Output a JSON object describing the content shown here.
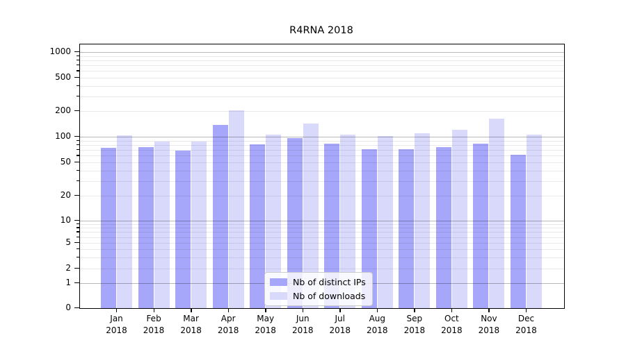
{
  "chart_data": {
    "type": "bar",
    "title": "R4RNA 2018",
    "categories": [
      "Jan",
      "Feb",
      "Mar",
      "Apr",
      "May",
      "Jun",
      "Jul",
      "Aug",
      "Sep",
      "Oct",
      "Nov",
      "Dec"
    ],
    "year_label": "2018",
    "series": [
      {
        "name": "Nb of distinct IPs",
        "color": "#a6a6fa",
        "values": [
          74,
          75,
          69,
          138,
          82,
          96,
          83,
          72,
          72,
          76,
          83,
          62
        ]
      },
      {
        "name": "Nb of downloads",
        "color": "#d9d9fc",
        "values": [
          103,
          87,
          88,
          204,
          106,
          143,
          106,
          101,
          110,
          121,
          163,
          106
        ]
      }
    ],
    "yscale": "symlog",
    "yticks": [
      0,
      1,
      2,
      5,
      10,
      20,
      50,
      100,
      200,
      500,
      1000
    ],
    "ylim": [
      0,
      1230
    ],
    "grid": "both",
    "legend_position": "lower center",
    "axis_color": "#000000",
    "major_grid_values": [
      1,
      10,
      100,
      1000
    ],
    "minor_grid_base": [
      2,
      3,
      4,
      5,
      6,
      7,
      8,
      9
    ]
  }
}
